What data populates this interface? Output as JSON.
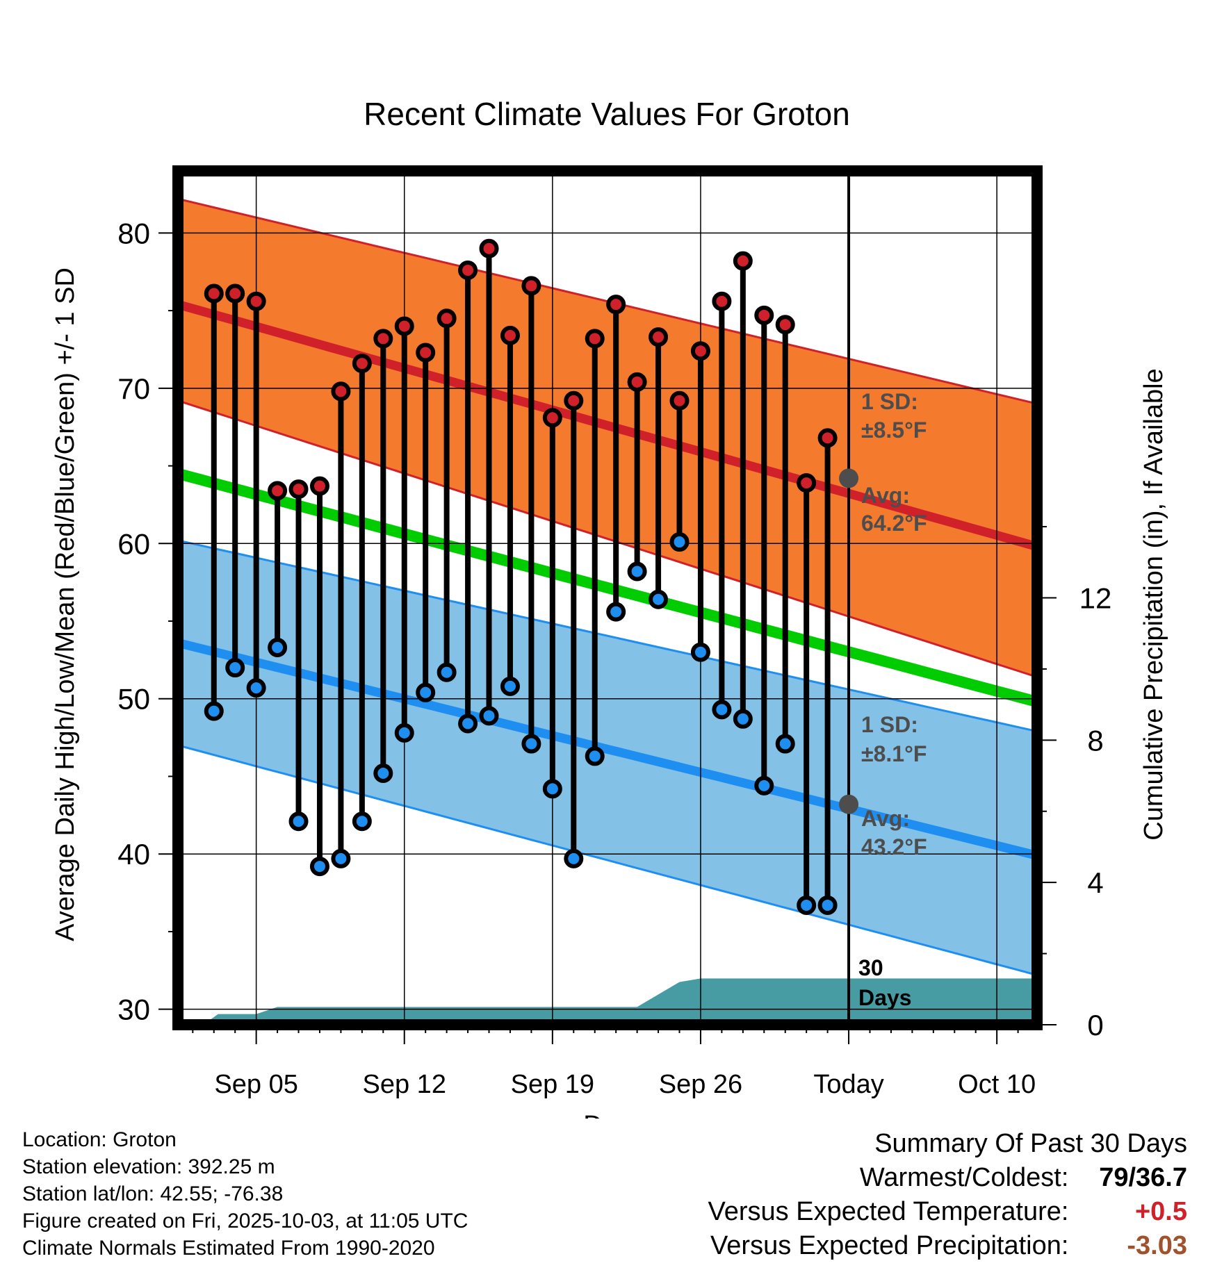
{
  "chart_data": {
    "type": "line",
    "title": "Recent Climate Values For Groton",
    "xlabel": "Day",
    "ylabel_left": "Average Daily High/Low/Mean (Red/Blue/Green) +/- 1 SD",
    "ylabel_right": "Cumulative Precipitation (in), If Available",
    "ylim_left": [
      29,
      84
    ],
    "ylim_right": [
      0,
      24
    ],
    "yticks_left": [
      "30",
      "40",
      "50",
      "60",
      "70",
      "80"
    ],
    "yticks_right": [
      "0",
      "4",
      "8",
      "12"
    ],
    "x_ticks": [
      "Sep 05",
      "Sep 12",
      "Sep 19",
      "Sep 26",
      "Today",
      "Oct 10"
    ],
    "x_range_days": [
      1.3,
      41.9
    ],
    "x_tick_days": [
      5,
      12,
      19,
      26,
      33,
      40
    ],
    "today_day": 33,
    "normals": {
      "high_mean": {
        "start": 75.4,
        "end": 59.8
      },
      "high_upper": {
        "start": 82.2,
        "end": 69.0
      },
      "high_lower": {
        "start": 69.2,
        "end": 51.4
      },
      "low_mean": {
        "start": 53.6,
        "end": 39.9
      },
      "low_upper": {
        "start": 60.2,
        "end": 47.9
      },
      "low_lower": {
        "start": 47.0,
        "end": 32.2
      },
      "mean": {
        "start": 64.5,
        "end": 49.8
      }
    },
    "series": [
      {
        "name": "Daily High",
        "color": "#d0202a",
        "values": [
          76.1,
          76.1,
          75.6,
          63.4,
          63.5,
          63.7,
          69.8,
          71.6,
          73.2,
          74.0,
          72.3,
          74.5,
          77.6,
          79.0,
          73.4,
          76.6,
          68.1,
          69.2,
          73.2,
          75.4,
          70.4,
          73.3,
          69.2,
          72.4,
          75.6,
          78.2,
          74.7,
          74.1,
          63.9,
          66.8
        ]
      },
      {
        "name": "Daily Low",
        "color": "#1e8ff0",
        "values": [
          49.2,
          52.0,
          50.7,
          53.3,
          42.1,
          39.2,
          39.7,
          42.1,
          45.2,
          47.8,
          50.4,
          51.7,
          48.4,
          48.9,
          50.8,
          47.1,
          44.2,
          39.7,
          46.3,
          55.6,
          58.2,
          56.4,
          60.1,
          53.0,
          49.3,
          48.7,
          44.4,
          47.1,
          36.7,
          36.7
        ]
      },
      {
        "name": "Cumulative Precipitation",
        "color": "#479ca4",
        "x": [
          2.5,
          3.2,
          5.0,
          6.0,
          23.0,
          25.0,
          26.0,
          41.9
        ],
        "values": [
          0.0,
          0.3,
          0.3,
          0.5,
          0.5,
          1.2,
          1.3,
          1.3
        ]
      }
    ],
    "annotations": {
      "high_sd_label": "1 SD:",
      "high_sd_value": "±8.5°F",
      "high_avg_label": "Avg:",
      "high_avg_value": "64.2°F",
      "high_avg": 64.2,
      "low_sd_label": "1 SD:",
      "low_sd_value": "±8.1°F",
      "low_avg_label": "Avg:",
      "low_avg_value": "43.2°F",
      "low_avg": 43.2,
      "days_line1": "30",
      "days_line2": "Days"
    }
  },
  "colors": {
    "high_band": "#f47a2e",
    "high_edge": "#d0202a",
    "low_band": "#84c1e6",
    "low_edge": "#1e8ff0",
    "mean_line": "#00cc00",
    "precip": "#479ca4",
    "today_marker": "#4d4d4d"
  },
  "footer": {
    "location": "Location: Groton",
    "elevation": "Station elevation: 392.25 m",
    "latlon": "Station lat/lon: 42.55; -76.38",
    "created": "Figure created on Fri, 2025-10-03, at 11:05 UTC",
    "normals": "Climate Normals Estimated From 1990-2020"
  },
  "summary": {
    "title": "Summary Of Past 30 Days",
    "warmest_label": "Warmest/Coldest:",
    "warmest_value": "79/36.7",
    "temp_label": "Versus Expected Temperature:",
    "temp_value": "+0.5",
    "temp_color": "#d0202a",
    "precip_label": "Versus Expected Precipitation:",
    "precip_value": "-3.03",
    "precip_color": "#a0522d"
  }
}
